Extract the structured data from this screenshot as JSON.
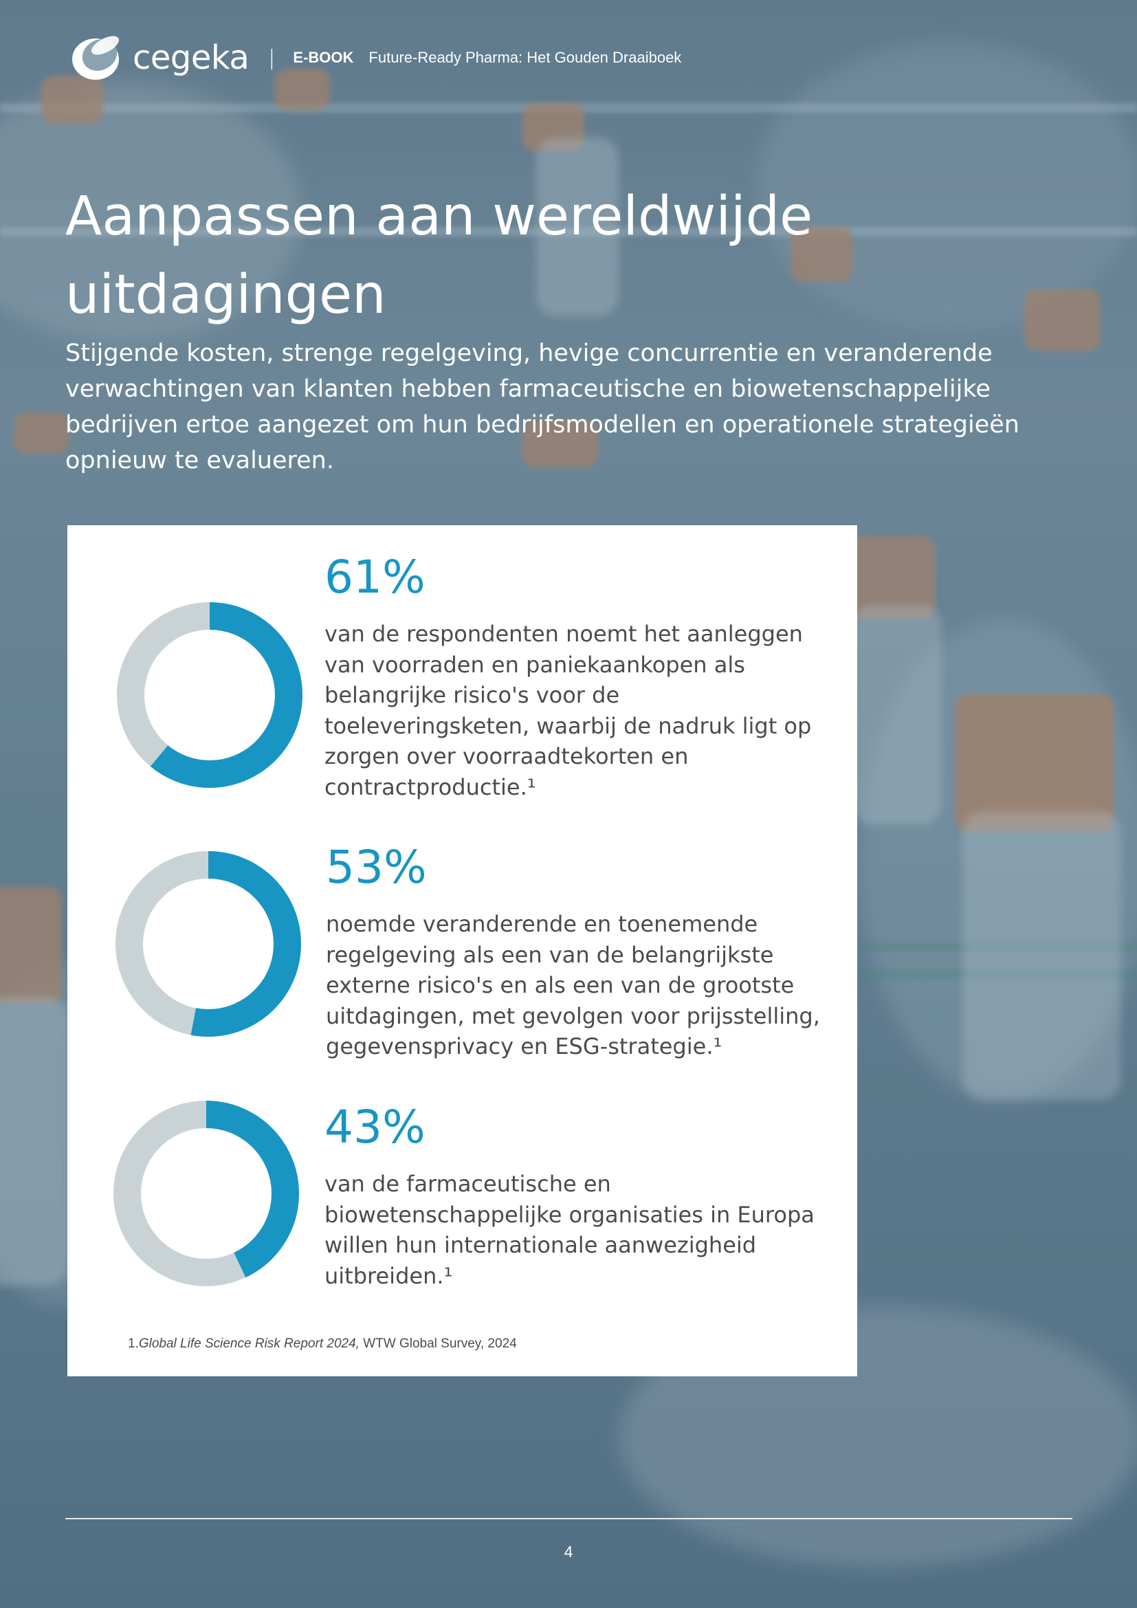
{
  "header": {
    "brand": "cegeka",
    "separator": "|",
    "label": "E-BOOK",
    "document_title": "Future-Ready Pharma: Het Gouden Draaiboek"
  },
  "headline": "Aanpassen aan wereldwijde uitdagingen",
  "intro": "Stijgende kosten, strenge regelgeving, hevige concurrentie en veranderende verwachtingen van klanten hebben farmaceutische en biowetenschappelijke bedrijven ertoe aangezet om hun bedrijfsmodellen en operationele strategieën opnieuw te evalueren.",
  "colors": {
    "accent": "#1995c4",
    "track": "#c9d3d6",
    "body_text": "#4b4b4b"
  },
  "stats": [
    {
      "value": "61%",
      "percent": 61,
      "text": "van de respondenten noemt het aanleggen van voorraden en paniekaankopen als belangrijke risico's voor de toeleveringsketen, waarbij de nadruk ligt op zorgen over voorraadtekorten en contractproductie.¹"
    },
    {
      "value": "53%",
      "percent": 53,
      "text": "noemde veranderende en toenemende regelgeving als een van de belangrijkste externe risico's en als een van de grootste uitdagingen, met gevolgen voor prijsstelling, gegevensprivacy en ESG-strategie.¹"
    },
    {
      "value": "43%",
      "percent": 43,
      "text": "van de farmaceutische en biowetenschappelijke organisaties in Europa willen hun internationale aanwezigheid uitbreiden.¹"
    }
  ],
  "footnote": {
    "marker": "1.",
    "source_title": "Global Life Science Risk Report 2024,",
    "source_rest": " WTW Global Survey, 2024"
  },
  "page_number": "4"
}
